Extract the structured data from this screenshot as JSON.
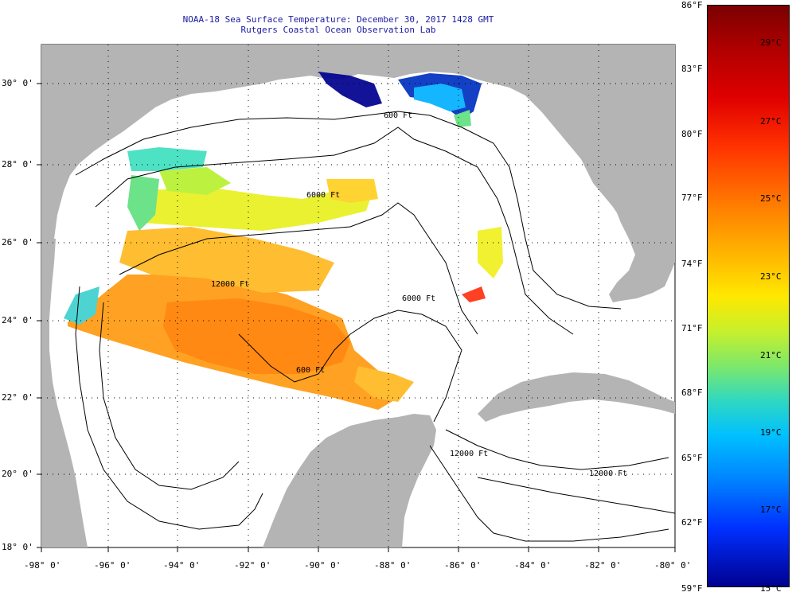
{
  "header": {
    "title_line1": "NOAA-18 Sea Surface Temperature:  December 30, 2017 1428 GMT",
    "title_line2": "Rutgers Coastal Ocean Observation Lab"
  },
  "map": {
    "lon_labels": [
      "-98° 0'",
      "-96° 0'",
      "-94° 0'",
      "-92° 0'",
      "-90° 0'",
      "-88° 0'",
      "-86° 0'",
      "-84° 0'",
      "-82° 0'",
      "-80° 0'"
    ],
    "lat_labels": [
      "30° 0'",
      "28° 0'",
      "26° 0'",
      "24° 0'",
      "22° 0'",
      "20° 0'",
      "18° 0'"
    ],
    "contour_labels": [
      "600 Ft",
      "6000 Ft",
      "12000 Ft",
      "6000 Ft",
      "600 Ft",
      "12000 Ft",
      "12000 Ft"
    ],
    "colors": {
      "land": "#b4b4b4",
      "water": "#ffffff"
    }
  },
  "colorbar": {
    "fahrenheit": [
      "86°F",
      "83°F",
      "80°F",
      "77°F",
      "74°F",
      "71°F",
      "68°F",
      "65°F",
      "62°F",
      "59°F"
    ],
    "celsius": [
      "29°C",
      "27°C",
      "25°C",
      "23°C",
      "21°C",
      "19°C",
      "17°C",
      "15°C"
    ]
  }
}
